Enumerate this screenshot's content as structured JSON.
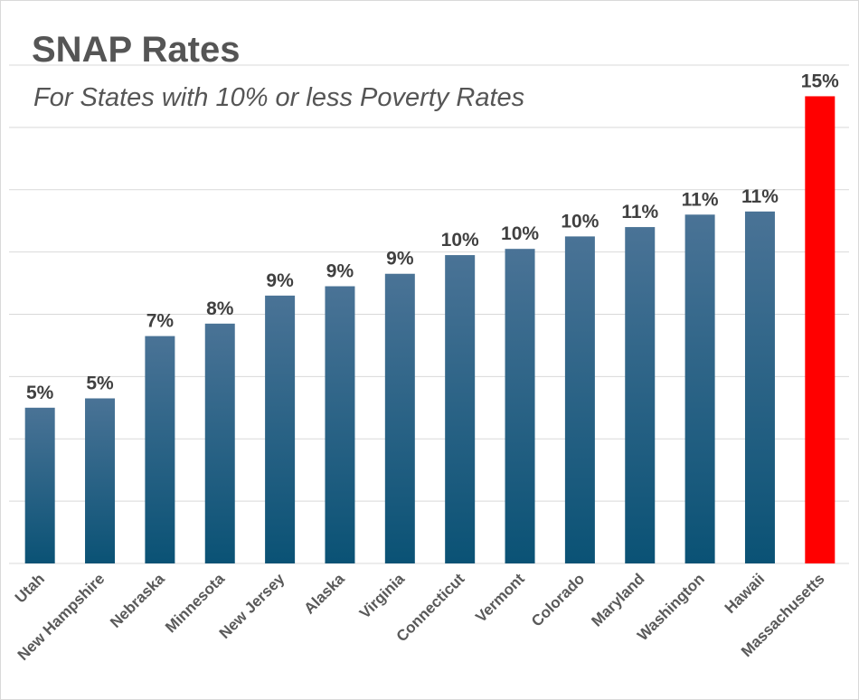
{
  "chart_data": {
    "type": "bar",
    "title": "SNAP Rates",
    "subtitle": "For States with 10% or less Poverty Rates",
    "categories": [
      "Utah",
      "New Hampshire",
      "Nebraska",
      "Minnesota",
      "New Jersey",
      "Alaska",
      "Virginia",
      "Connecticut",
      "Vermont",
      "Colorado",
      "Maryland",
      "Washington",
      "Hawaii",
      "Massachusetts"
    ],
    "values": [
      5.0,
      5.3,
      7.3,
      7.7,
      8.6,
      8.9,
      9.3,
      9.9,
      10.1,
      10.5,
      10.8,
      11.2,
      11.3,
      15.0
    ],
    "data_labels": [
      "5%",
      "5%",
      "7%",
      "8%",
      "9%",
      "9%",
      "9%",
      "10%",
      "10%",
      "10%",
      "11%",
      "11%",
      "11%",
      "15%"
    ],
    "ylim": [
      0,
      16
    ],
    "gridlines": true,
    "colors": {
      "bar_gradient_top": "#4a7396",
      "bar_gradient_bottom": "#0a5275",
      "highlight": "#ff0000"
    },
    "highlight_category": "Massachusetts"
  }
}
